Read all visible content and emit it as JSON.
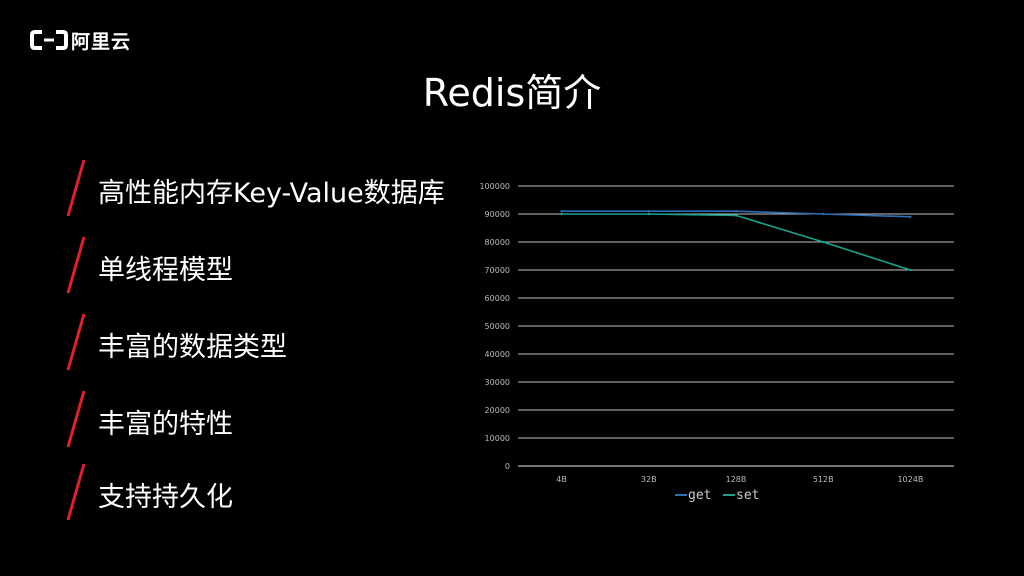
{
  "brand": {
    "name": "阿里云"
  },
  "slide": {
    "title": "Redis简介"
  },
  "bullets": [
    {
      "text": "高性能内存Key-Value数据库"
    },
    {
      "text": "单线程模型"
    },
    {
      "text": "丰富的数据类型"
    },
    {
      "text": "丰富的特性"
    },
    {
      "text": "支持持久化"
    }
  ],
  "colors": {
    "accent": "#e0202a",
    "get": "#2e6db4",
    "set": "#1aa38c",
    "grid": "#ffffff",
    "axis_text": "#bbbbbb"
  },
  "chart_data": {
    "type": "line",
    "title": "",
    "xlabel": "",
    "ylabel": "",
    "categories": [
      "4B",
      "32B",
      "128B",
      "512B",
      "1024B"
    ],
    "ylim": [
      0,
      100000
    ],
    "yticks": [
      0,
      10000,
      20000,
      30000,
      40000,
      50000,
      60000,
      70000,
      80000,
      90000,
      100000
    ],
    "ytick_labels": [
      "0",
      "10000",
      "20000",
      "30000",
      "40000",
      "50000",
      "60000",
      "70000",
      "80000",
      "90000",
      "100000"
    ],
    "grid": true,
    "legend_position": "bottom",
    "series": [
      {
        "name": "get",
        "values": [
          91000,
          91000,
          91000,
          90000,
          89000
        ],
        "color": "#2e6db4"
      },
      {
        "name": "set",
        "values": [
          90000,
          90000,
          89500,
          80000,
          70000
        ],
        "color": "#1aa38c"
      }
    ]
  }
}
